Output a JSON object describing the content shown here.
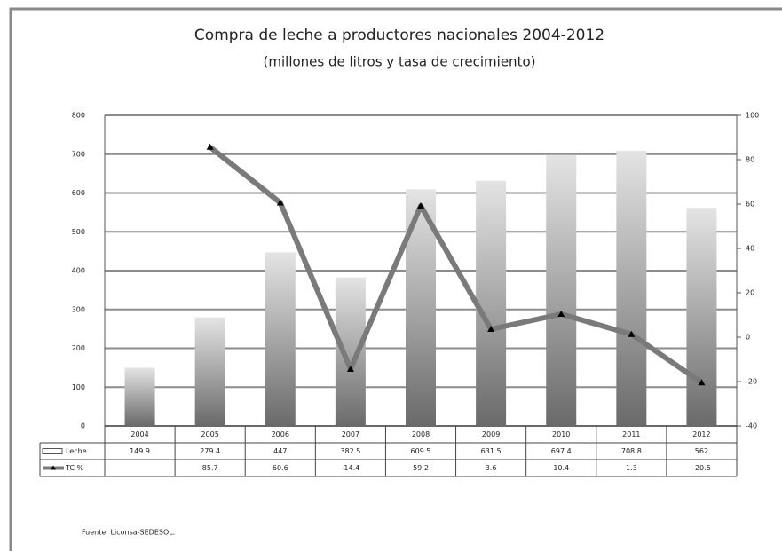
{
  "chart_data": {
    "type": "bar-line",
    "title": "Compra de leche a productores nacionales 2004-2012",
    "subtitle": "(millones de litros y tasa de crecimiento)",
    "categories": [
      "2004",
      "2005",
      "2006",
      "2007",
      "2008",
      "2009",
      "2010",
      "2011",
      "2012"
    ],
    "series": [
      {
        "name": "Leche",
        "color": "#9a9a9a",
        "values": [
          149.9,
          279.4,
          447,
          382.5,
          609.5,
          631.5,
          697.4,
          708.8,
          562
        ]
      },
      {
        "name": "TC %",
        "color": "#7a7a7a",
        "axis": "y2",
        "values": [
          null,
          85.7,
          60.6,
          -14.4,
          59.2,
          3.6,
          10.4,
          1.3,
          -20.5
        ]
      }
    ],
    "ylim": [
      0,
      800
    ],
    "yticks": [
      0,
      100,
      200,
      300,
      400,
      500,
      600,
      700,
      800
    ],
    "y2lim": [
      -40,
      100
    ],
    "y2ticks": [
      -40,
      -20,
      0,
      20,
      40,
      60,
      80,
      100
    ],
    "grid": true,
    "source": "Fuente: Liconsa-SEDESOL."
  }
}
